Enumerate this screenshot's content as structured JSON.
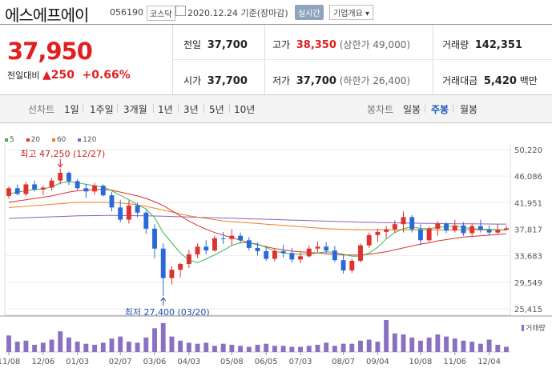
{
  "header": {
    "name": "에스에프에이",
    "code": "056190",
    "market": "코스닥",
    "date": "2020.12.24 기준(장마감)",
    "realtime": "실시간",
    "overview": "기업개요 ▾"
  },
  "price": {
    "current": "37,950",
    "change_label": "전일대비",
    "change": "▲250",
    "change_pct": "+0.66%"
  },
  "stats": {
    "prev_close_label": "전일",
    "prev_close": "37,700",
    "high_label": "고가",
    "high": "38,350",
    "upper_limit": "(상한가 49,000)",
    "volume_label": "거래량",
    "volume": "142,351",
    "open_label": "시가",
    "open": "37,700",
    "low_label": "저가",
    "low": "37,700",
    "lower_limit": "(하한가 26,400)",
    "amount_label": "거래대금",
    "amount": "5,420",
    "amount_unit": "백만"
  },
  "tabs": {
    "line_label": "선차트",
    "periods": [
      "1일",
      "1주일",
      "3개월",
      "1년",
      "3년",
      "5년",
      "10년"
    ],
    "candle_label": "봉차트",
    "candles": [
      "일봉",
      "주봉",
      "월봉"
    ],
    "active_candle": "주봉"
  },
  "legend": [
    {
      "label": "5",
      "color": "#3cb44b"
    },
    {
      "label": "20",
      "color": "#e03030"
    },
    {
      "label": "60",
      "color": "#f08020"
    },
    {
      "label": "120",
      "color": "#9060c0"
    }
  ],
  "chart_data": {
    "type": "candlestick",
    "ylim": [
      25415,
      50220
    ],
    "yticks": [
      "50,220",
      "46,086",
      "41,951",
      "37,817",
      "33,683",
      "29,549",
      "25,415"
    ],
    "ytick_values": [
      50220,
      46086,
      41951,
      37817,
      33683,
      29549,
      25415
    ],
    "xticks": [
      "11/08",
      "12/06",
      "01/03",
      "02/07",
      "03/06",
      "04/03",
      "05/08",
      "06/05",
      "07/03",
      "08/07",
      "09/04",
      "10/08",
      "11/06",
      "12/04"
    ],
    "xtick_index": [
      0,
      4,
      8,
      13,
      17,
      21,
      26,
      30,
      34,
      39,
      43,
      48,
      52,
      56
    ],
    "max_annotation": "최고 47,250 (12/27)",
    "max_index": 6,
    "max_value": 47250,
    "min_annotation": "최저 27,400 (03/20)",
    "min_index": 18,
    "min_value": 27400,
    "volume_label": "거래량",
    "candles": [
      [
        43000,
        44500,
        42600,
        44200
      ],
      [
        44200,
        44800,
        43100,
        43300
      ],
      [
        43300,
        45200,
        43000,
        44800
      ],
      [
        44800,
        45400,
        43700,
        44000
      ],
      [
        44000,
        44600,
        43100,
        44300
      ],
      [
        44300,
        45800,
        43800,
        45400
      ],
      [
        45400,
        47250,
        44800,
        46600
      ],
      [
        46600,
        46800,
        44700,
        45300
      ],
      [
        45300,
        45600,
        43900,
        44200
      ],
      [
        44200,
        44900,
        42700,
        43700
      ],
      [
        43700,
        45000,
        43200,
        44600
      ],
      [
        44600,
        44800,
        42900,
        43100
      ],
      [
        43100,
        43600,
        40600,
        41200
      ],
      [
        41200,
        42400,
        38900,
        39300
      ],
      [
        39300,
        42300,
        38700,
        41500
      ],
      [
        41500,
        42000,
        39700,
        40400
      ],
      [
        40400,
        40800,
        37100,
        37900
      ],
      [
        37900,
        38600,
        33300,
        34800
      ],
      [
        34800,
        35600,
        27400,
        30200
      ],
      [
        30200,
        32100,
        29200,
        31500
      ],
      [
        31500,
        32600,
        30300,
        32400
      ],
      [
        32400,
        34600,
        31800,
        33900
      ],
      [
        33900,
        35600,
        33300,
        35100
      ],
      [
        35100,
        36100,
        33900,
        34500
      ],
      [
        34500,
        36800,
        34300,
        36400
      ],
      [
        36400,
        37400,
        35500,
        36300
      ],
      [
        36300,
        37800,
        35300,
        36800
      ],
      [
        36800,
        37300,
        35600,
        36100
      ],
      [
        36100,
        36600,
        34500,
        34900
      ],
      [
        34900,
        35800,
        33700,
        34400
      ],
      [
        34400,
        35100,
        32900,
        33200
      ],
      [
        33200,
        34800,
        32800,
        34400
      ],
      [
        34400,
        35400,
        33400,
        34100
      ],
      [
        34100,
        34900,
        32600,
        33100
      ],
      [
        33100,
        34200,
        32500,
        33600
      ],
      [
        33600,
        35300,
        33400,
        34800
      ],
      [
        34800,
        35900,
        34200,
        35100
      ],
      [
        35100,
        35800,
        34000,
        34500
      ],
      [
        34500,
        35200,
        32700,
        33000
      ],
      [
        33000,
        33800,
        30900,
        31400
      ],
      [
        31400,
        33200,
        31000,
        32900
      ],
      [
        32900,
        35600,
        32600,
        35300
      ],
      [
        35300,
        37300,
        34900,
        36900
      ],
      [
        36900,
        37900,
        35800,
        37400
      ],
      [
        37400,
        38300,
        36400,
        37800
      ],
      [
        37800,
        39200,
        37200,
        38600
      ],
      [
        38600,
        40600,
        37300,
        39700
      ],
      [
        39700,
        40000,
        37300,
        37800
      ],
      [
        37800,
        38600,
        35300,
        36100
      ],
      [
        36100,
        38200,
        35800,
        37900
      ],
      [
        37900,
        39100,
        36800,
        38700
      ],
      [
        38700,
        38900,
        37200,
        37600
      ],
      [
        37600,
        39300,
        37300,
        38400
      ],
      [
        38400,
        38900,
        36800,
        37200
      ],
      [
        37200,
        38700,
        36700,
        38300
      ],
      [
        38300,
        39300,
        37300,
        37700
      ],
      [
        37700,
        38400,
        36800,
        37300
      ],
      [
        37300,
        38600,
        37100,
        37700
      ],
      [
        37700,
        38350,
        37700,
        37950
      ]
    ],
    "volumes": [
      32,
      20,
      22,
      14,
      18,
      24,
      40,
      28,
      20,
      16,
      14,
      18,
      26,
      30,
      20,
      18,
      28,
      46,
      56,
      30,
      22,
      18,
      16,
      18,
      12,
      16,
      14,
      12,
      10,
      14,
      16,
      12,
      12,
      10,
      10,
      12,
      14,
      18,
      12,
      16,
      16,
      22,
      24,
      20,
      62,
      36,
      34,
      28,
      22,
      28,
      34,
      30,
      26,
      22,
      20,
      16,
      24,
      14,
      10
    ],
    "ma5": [
      43300,
      43600,
      43800,
      44000,
      44100,
      44400,
      45000,
      45200,
      45100,
      44800,
      44600,
      44400,
      43800,
      43100,
      42400,
      41600,
      41000,
      39600,
      37300,
      35700,
      34100,
      33000,
      32600,
      33200,
      33800,
      34500,
      35300,
      35700,
      35700,
      35500,
      35000,
      34400,
      34100,
      34000,
      33900,
      33900,
      34100,
      34300,
      34200,
      33900,
      33600,
      33600,
      34100,
      35000,
      36300,
      37300,
      37900,
      38200,
      37900,
      37900,
      38100,
      38200,
      38300,
      38100,
      37900,
      37800,
      37800,
      37700,
      37700
    ],
    "ma20": [
      42000,
      42200,
      42400,
      42600,
      42800,
      43000,
      43300,
      43600,
      43800,
      43900,
      44000,
      44000,
      43900,
      43600,
      43300,
      43000,
      42600,
      42100,
      41500,
      40700,
      39900,
      39100,
      38400,
      37800,
      37300,
      36900,
      36500,
      36100,
      35700,
      35400,
      35100,
      34800,
      34600,
      34400,
      34300,
      34200,
      34100,
      34000,
      33900,
      33800,
      33800,
      33800,
      33900,
      34100,
      34300,
      34600,
      34900,
      35200,
      35500,
      35700,
      36000,
      36200,
      36400,
      36600,
      36700,
      36800,
      36900,
      37000,
      37100
    ],
    "ma60": [
      41200,
      41300,
      41400,
      41500,
      41600,
      41700,
      41800,
      41900,
      42000,
      42000,
      42000,
      42000,
      41950,
      41900,
      41800,
      41600,
      41400,
      41100,
      40800,
      40500,
      40200,
      39900,
      39700,
      39500,
      39300,
      39100,
      39000,
      38900,
      38800,
      38700,
      38600,
      38500,
      38400,
      38300,
      38200,
      38100,
      38000,
      37900,
      37850,
      37800,
      37750,
      37700,
      37700,
      37700,
      37700,
      37700,
      37700,
      37700,
      37700,
      37700,
      37700,
      37700,
      37700,
      37700,
      37700,
      37700,
      37700,
      37700,
      37700
    ],
    "ma120": [
      39500,
      39550,
      39600,
      39650,
      39700,
      39750,
      39800,
      39850,
      39900,
      39920,
      39940,
      39960,
      39960,
      39950,
      39940,
      39920,
      39900,
      39870,
      39840,
      39800,
      39760,
      39720,
      39680,
      39640,
      39600,
      39560,
      39520,
      39480,
      39440,
      39400,
      39360,
      39320,
      39280,
      39240,
      39200,
      39160,
      39120,
      39080,
      39040,
      39000,
      38960,
      38920,
      38890,
      38860,
      38830,
      38800,
      38780,
      38760,
      38740,
      38720,
      38700,
      38680,
      38670,
      38660,
      38650,
      38640,
      38630,
      38620,
      38610
    ]
  }
}
